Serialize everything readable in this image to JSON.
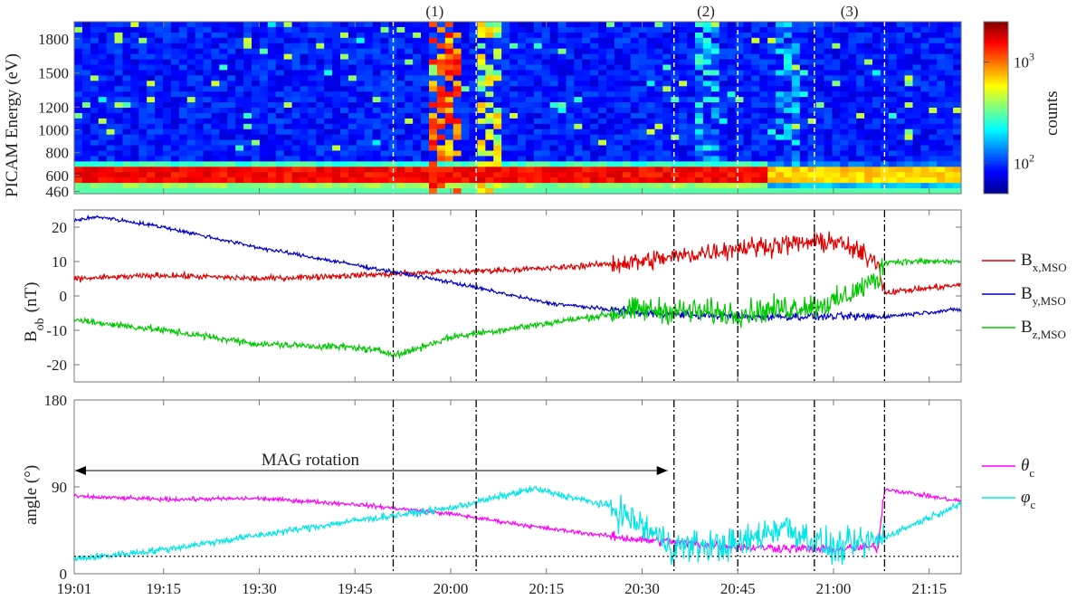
{
  "chart_data": [
    {
      "type": "heatmap",
      "ylabel": "PICAM Energy (eV)",
      "yticks": [
        "1800",
        "1500",
        "1200",
        "1000",
        "800",
        "600",
        "460"
      ],
      "colorbar": {
        "label": "counts",
        "scale": "log",
        "ticks": [
          "10",
          "10"
        ],
        "tick_exponents": [
          "3",
          "2"
        ],
        "tick_values": [
          1000,
          100
        ]
      },
      "event_labels": [
        "(1)",
        "(2)",
        "(3)"
      ],
      "event_times": [
        "19:51",
        "20:04",
        "20:35",
        "20:45",
        "20:57",
        "21:08"
      ],
      "features": {
        "dominant_band_eV": [
          540,
          680
        ],
        "band_counts_peak": 1800,
        "background_counts": 90,
        "bursts": [
          {
            "time": "19:59",
            "counts": 1500
          },
          {
            "time": "20:06",
            "counts": 700
          },
          {
            "time": "20:40",
            "counts": 250
          },
          {
            "time": "20:53",
            "counts": 200
          }
        ]
      }
    },
    {
      "type": "line",
      "ylabel": "B",
      "ylabel_sub": "ob",
      "ylabel_unit": "(nT)",
      "ylim": [
        -25,
        25
      ],
      "yticks": [
        "20",
        "10",
        "0",
        "-10",
        "-20"
      ],
      "series": [
        {
          "name": "B",
          "name_sub": "x,MSO",
          "color": "#e00000",
          "x": [
            "19:01",
            "19:15",
            "19:30",
            "19:45",
            "20:00",
            "20:15",
            "20:30",
            "20:45",
            "21:00",
            "21:07",
            "21:08",
            "21:19"
          ],
          "values": [
            5,
            6,
            5,
            6,
            7,
            8,
            10,
            14,
            16,
            10,
            1,
            3
          ]
        },
        {
          "name": "B",
          "name_sub": "y,MSO",
          "color": "#0000c8",
          "x": [
            "19:01",
            "19:05",
            "19:15",
            "19:30",
            "19:45",
            "20:00",
            "20:15",
            "20:30",
            "20:45",
            "21:00",
            "21:08",
            "21:19"
          ],
          "values": [
            22,
            23,
            20,
            14,
            9,
            4,
            -2,
            -5,
            -6,
            -6,
            -6,
            -4
          ]
        },
        {
          "name": "B",
          "name_sub": "z,MSO",
          "color": "#00c800",
          "x": [
            "19:01",
            "19:15",
            "19:30",
            "19:45",
            "19:52",
            "20:00",
            "20:15",
            "20:30",
            "20:45",
            "21:00",
            "21:07",
            "21:08",
            "21:19"
          ],
          "values": [
            -7,
            -10,
            -14,
            -15,
            -17,
            -12,
            -8,
            -4,
            -5,
            -2,
            5,
            10,
            10
          ]
        }
      ],
      "event_times": [
        "19:51",
        "20:04",
        "20:35",
        "20:45",
        "20:57",
        "21:08"
      ]
    },
    {
      "type": "line",
      "ylabel": "angle (°)",
      "ylim": [
        0,
        180
      ],
      "yticks": [
        "180",
        "90",
        "0"
      ],
      "reference_line": 18,
      "annotation": "MAG rotation",
      "annotation_span": [
        "19:01",
        "20:34"
      ],
      "series": [
        {
          "name": "θ",
          "name_sub": "c",
          "color": "#ff00ff",
          "x": [
            "19:01",
            "19:15",
            "19:30",
            "19:45",
            "20:00",
            "20:15",
            "20:30",
            "20:45",
            "21:00",
            "21:07",
            "21:08",
            "21:19"
          ],
          "values": [
            80,
            77,
            78,
            72,
            62,
            47,
            35,
            28,
            25,
            28,
            88,
            76
          ]
        },
        {
          "name": "φ",
          "name_sub": "c",
          "color": "#00e6e6",
          "x": [
            "19:01",
            "19:15",
            "19:30",
            "19:45",
            "20:00",
            "20:13",
            "20:25",
            "20:35",
            "20:45",
            "20:52",
            "21:00",
            "21:07",
            "21:19"
          ],
          "values": [
            15,
            25,
            40,
            55,
            68,
            88,
            70,
            28,
            30,
            50,
            25,
            35,
            70
          ]
        }
      ],
      "event_times": [
        "19:51",
        "20:04",
        "20:35",
        "20:45",
        "20:57",
        "21:08"
      ]
    }
  ],
  "x_axis": {
    "range": [
      "19:01",
      "21:20"
    ],
    "ticks": [
      "19:01",
      "19:15",
      "19:30",
      "19:45",
      "20:00",
      "20:15",
      "20:30",
      "20:45",
      "21:00",
      "21:15"
    ]
  }
}
